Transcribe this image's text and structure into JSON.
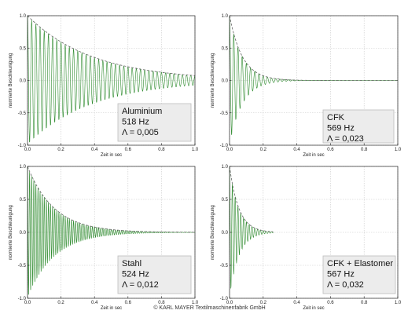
{
  "colors": {
    "signal": "#2e8b2e",
    "envelope": "#666666",
    "grid": "#c8c8c8",
    "box_bg": "#ececec",
    "box_border": "#bdbdbd"
  },
  "copyright": "© KARL MAYER Textilmaschinenfabrik GmbH",
  "chart_data": [
    {
      "type": "line",
      "material": "Aluminium",
      "frequency": "518 Hz",
      "damping": "Λ = 0,005",
      "lambda": 0.005,
      "freq_hz": 518,
      "samples_hz": 40,
      "cycle_count": 50,
      "signal_end": 1.0,
      "xlabel": "Zeit in sec",
      "ylabel": "normierte Beschleunigung",
      "xlim": [
        0.0,
        1.0
      ],
      "ylim": [
        -1.0,
        1.0
      ],
      "xticks": [
        "0.0",
        "0.2",
        "0.4",
        "0.6",
        "0.8",
        "1.0"
      ],
      "yticks": [
        "1.0",
        "0.5",
        "0.0",
        "-0.5",
        "-1.0"
      ],
      "series": [
        {
          "type": "damped-oscillation"
        },
        {
          "type": "envelope",
          "style": "dashed"
        }
      ],
      "grid": true,
      "legend": "bottom-right"
    },
    {
      "type": "line",
      "material": "CFK",
      "frequency": "569 Hz",
      "damping": "Λ = 0,023",
      "lambda": 0.023,
      "freq_hz": 569,
      "samples_hz": 40,
      "cycle_count": 50,
      "signal_end": 1.0,
      "xlabel": "Zeit in sec",
      "ylabel": "normierte Beschleunigung",
      "xlim": [
        0.0,
        1.0
      ],
      "ylim": [
        -1.0,
        1.0
      ],
      "xticks": [
        "0.0",
        "0.2",
        "0.4",
        "0.6",
        "0.8",
        "1.0"
      ],
      "yticks": [
        "1.0",
        "0.5",
        "0.0",
        "-0.5",
        "-1.0"
      ],
      "series": [
        {
          "type": "damped-oscillation"
        },
        {
          "type": "envelope",
          "style": "dashed"
        }
      ],
      "grid": true,
      "legend": "bottom-right"
    },
    {
      "type": "line",
      "material": "Stahl",
      "frequency": "524 Hz",
      "damping": "Λ = 0,012",
      "lambda": 0.012,
      "freq_hz": 524,
      "samples_hz": 80,
      "cycle_count": 100,
      "signal_end": 1.0,
      "xlabel": "Zeit in sec",
      "ylabel": "normierte Beschleunigung",
      "xlim": [
        0.0,
        1.0
      ],
      "ylim": [
        -1.0,
        1.0
      ],
      "xticks": [
        "0.0",
        "0.2",
        "0.4",
        "0.6",
        "0.8",
        "1.0"
      ],
      "yticks": [
        "1.0",
        "0.5",
        "0.0",
        "-0.5",
        "-1.0"
      ],
      "series": [
        {
          "type": "damped-oscillation"
        },
        {
          "type": "envelope",
          "style": "dashed"
        }
      ],
      "grid": true,
      "legend": "bottom-right"
    },
    {
      "type": "line",
      "material": "CFK + Elastomer",
      "frequency": "567 Hz",
      "damping": "Λ = 0,032",
      "lambda": 0.032,
      "freq_hz": 567,
      "samples_hz": 60,
      "cycle_count": 16,
      "signal_end": 0.26,
      "xlabel": "Zeit in sec",
      "ylabel": "normierte Beschleunigung",
      "xlim": [
        0.0,
        1.0
      ],
      "ylim": [
        -1.0,
        1.0
      ],
      "xticks": [
        "0.0",
        "0.2",
        "0.4",
        "0.6",
        "0.8",
        "1.0"
      ],
      "yticks": [
        "1.0",
        "0.5",
        "0.0",
        "-0.5",
        "-1.0"
      ],
      "series": [
        {
          "type": "damped-oscillation"
        },
        {
          "type": "envelope",
          "style": "dashed"
        }
      ],
      "grid": true,
      "legend": "bottom-right"
    }
  ]
}
